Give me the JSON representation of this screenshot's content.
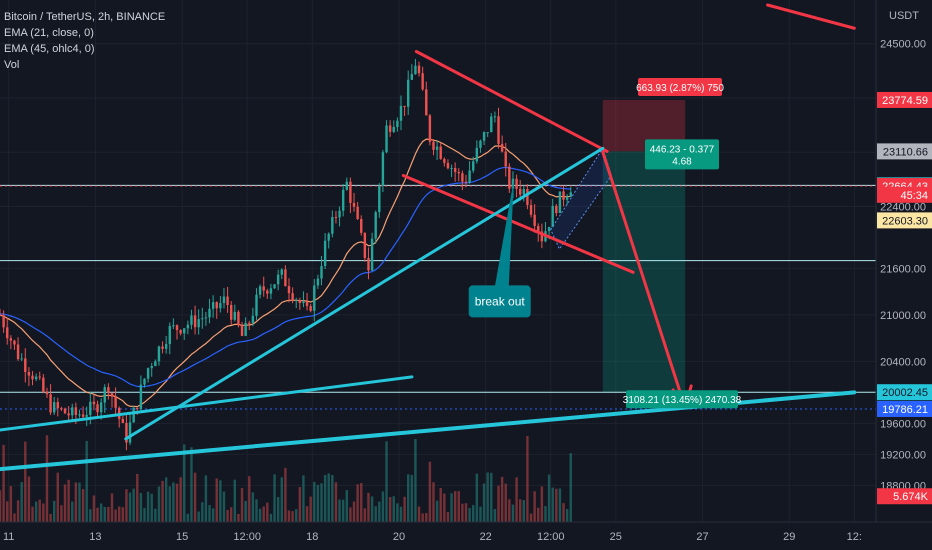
{
  "legend": {
    "symbol": "Bitcoin / TetherUS, 2h, BINANCE",
    "ema21": "EMA (21, close, 0)",
    "ema45": "EMA (45, ohlc4, 0)",
    "vol": "Vol"
  },
  "chart_data": {
    "type": "candlestick",
    "currency": "USDT",
    "y_ticks": [
      "24500.00",
      "23800.00",
      "23100.00",
      "22400.00",
      "21600.00",
      "21000.00",
      "20400.00",
      "19600.00",
      "19200.00",
      "18800.00"
    ],
    "x_ticks": [
      "11",
      "13",
      "15",
      "12:00",
      "18",
      "20",
      "22",
      "12:00",
      "25",
      "27",
      "29",
      "12:"
    ],
    "price_tags": [
      {
        "label": "23774.59",
        "value": 23774.59,
        "color": "#f23645",
        "text_color": "#ffffff"
      },
      {
        "label": "23110.66",
        "value": 23110.66,
        "color": "#b2b5be",
        "text_color": "#131722"
      },
      {
        "label": "22672.67",
        "value": 22672.67,
        "color": "#26c6da",
        "text_color": "#131722"
      },
      {
        "label": "22664.43",
        "value": 22664.43,
        "color": "#f23645",
        "text_color": "#ffffff"
      },
      {
        "label": "45:34",
        "value": 22550,
        "color": "#f23645",
        "text_color": "#ffffff"
      },
      {
        "label": "22603.30",
        "value": 22220,
        "color": "#fce6a4",
        "text_color": "#131722"
      },
      {
        "label": "20002.45",
        "value": 20002.45,
        "color": "#26c6da",
        "text_color": "#131722"
      },
      {
        "label": "19786.21",
        "value": 19786.21,
        "color": "#2962ff",
        "text_color": "#ffffff"
      },
      {
        "label": "5.674K",
        "value": 18660,
        "color": "#f23645",
        "text_color": "#ffffff"
      }
    ],
    "horizontal_lines": [
      {
        "value": 22672.67,
        "style": "solid",
        "color": "#b2ebf2"
      },
      {
        "value": 22664.43,
        "style": "dotted",
        "color": "#f23645"
      },
      {
        "value": 21700,
        "style": "solid",
        "color": "#b2ebf2"
      },
      {
        "value": 20002.45,
        "style": "solid",
        "color": "#b2ebf2"
      },
      {
        "value": 19786.21,
        "style": "dotted",
        "color": "#2962ff"
      }
    ],
    "position": {
      "stop_label": "663.93 (2.87%) 750",
      "entry_label_line1": "446.23 - 0.377",
      "entry_label_line2": "4.68",
      "target_label": "3108.21 (13.45%) 2470.38",
      "stop": 23774.59,
      "entry": 23110.66,
      "target": 20002.45,
      "x_from": 24.7,
      "x_to": 26.6
    },
    "annotation": {
      "text": "break out",
      "x": 22.3,
      "y": 21200
    },
    "ohlc_keypoints": [
      {
        "x": 10.8,
        "y": 21000
      },
      {
        "x": 11.2,
        "y": 20500
      },
      {
        "x": 11.6,
        "y": 20200
      },
      {
        "x": 12.0,
        "y": 19800
      },
      {
        "x": 12.5,
        "y": 19700
      },
      {
        "x": 13.0,
        "y": 19800
      },
      {
        "x": 13.3,
        "y": 20100
      },
      {
        "x": 13.7,
        "y": 19400
      },
      {
        "x": 14.2,
        "y": 20300
      },
      {
        "x": 14.7,
        "y": 20800
      },
      {
        "x": 15.2,
        "y": 20900
      },
      {
        "x": 15.6,
        "y": 21000
      },
      {
        "x": 16.0,
        "y": 21200
      },
      {
        "x": 16.4,
        "y": 20700
      },
      {
        "x": 16.8,
        "y": 21300
      },
      {
        "x": 17.3,
        "y": 21500
      },
      {
        "x": 17.9,
        "y": 21000
      },
      {
        "x": 18.3,
        "y": 21900
      },
      {
        "x": 18.8,
        "y": 22700
      },
      {
        "x": 19.3,
        "y": 21600
      },
      {
        "x": 19.7,
        "y": 23400
      },
      {
        "x": 20.1,
        "y": 23700
      },
      {
        "x": 20.4,
        "y": 24300
      },
      {
        "x": 20.7,
        "y": 23300
      },
      {
        "x": 21.1,
        "y": 23000
      },
      {
        "x": 21.5,
        "y": 22700
      },
      {
        "x": 21.8,
        "y": 23100
      },
      {
        "x": 22.2,
        "y": 23600
      },
      {
        "x": 22.5,
        "y": 22700
      },
      {
        "x": 22.9,
        "y": 22600
      },
      {
        "x": 23.3,
        "y": 22000
      },
      {
        "x": 23.6,
        "y": 22400
      },
      {
        "x": 24.0,
        "y": 22700
      }
    ],
    "trendlines": [
      {
        "from": [
          20.4,
          24400
        ],
        "to": [
          24.8,
          23110
        ],
        "color": "#f23645"
      },
      {
        "from": [
          20.1,
          22800
        ],
        "to": [
          25.4,
          21550
        ],
        "color": "#f23645"
      },
      {
        "from": [
          24.7,
          23100
        ],
        "to": [
          26.6,
          19800
        ],
        "color": "#f23645",
        "arrow": true
      },
      {
        "from": [
          28.5,
          25000
        ],
        "to": [
          30.5,
          24700
        ],
        "color": "#f23645"
      },
      {
        "from": [
          13.7,
          19400
        ],
        "to": [
          24.7,
          23150
        ],
        "color": "#26c6da"
      },
      {
        "from": [
          10.6,
          19500
        ],
        "to": [
          20.3,
          20200
        ],
        "color": "#26c6da"
      },
      {
        "from": [
          10.6,
          19000
        ],
        "to": [
          30.5,
          20000
        ],
        "color": "#26c6da",
        "thick": true
      }
    ],
    "xlim": [
      10.8,
      31.0
    ],
    "ylim": [
      18650,
      25000
    ],
    "grid": true,
    "legend_position": "top-left"
  }
}
